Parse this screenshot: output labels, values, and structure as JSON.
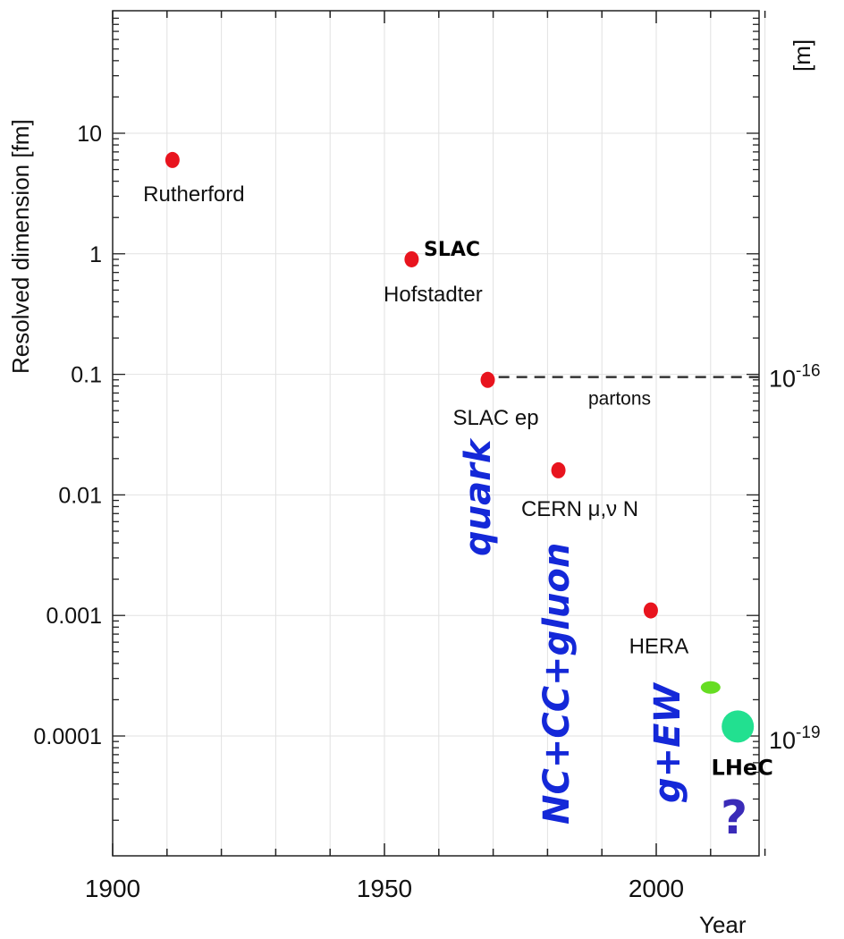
{
  "chart_data": {
    "type": "scatter",
    "xlabel": "Year",
    "ylabel": "Resolved dimension [fm]",
    "y2label": "[m]",
    "xlim": [
      1900,
      2020
    ],
    "ylim_log10": [
      -5.0,
      1.6
    ],
    "y_scale": "log",
    "x_ticks": [
      "1900",
      "1950",
      "2000"
    ],
    "y_ticks": [
      "10",
      "1",
      "0.1",
      "0.01",
      "0.001",
      "0.0001"
    ],
    "y2_ticks": [
      {
        "label": "10",
        "exponent": "-16"
      },
      {
        "label": "10",
        "exponent": "-19"
      }
    ],
    "points": [
      {
        "x": 1911,
        "y": 6,
        "label": "Rutherford",
        "color": "#e8141e"
      },
      {
        "x": 1955,
        "y": 0.9,
        "label": "Hofstadter",
        "color": "#e8141e"
      },
      {
        "x": 1969,
        "y": 0.09,
        "label": "SLAC ep",
        "color": "#e8141e"
      },
      {
        "x": 1982,
        "y": 0.016,
        "label": "CERN μ,ν N",
        "color": "#e8141e"
      },
      {
        "x": 1999,
        "y": 0.0011,
        "label": "HERA",
        "color": "#e8141e"
      },
      {
        "x": 2010,
        "y": 0.00028,
        "label": "",
        "color": "#66dd22"
      },
      {
        "x": 2015,
        "y": 0.00012,
        "label": "LHeC",
        "color": "#22e090"
      }
    ],
    "extra_labels": {
      "slac": "SLAC",
      "partons": "partons"
    },
    "annotations": {
      "quark": "quark",
      "nc_cc_gluon": "NC+CC+gluon",
      "g_ew": "g+EW",
      "question": "?"
    },
    "partons_line": {
      "x_start": 1971,
      "x_end": 2020,
      "y": 0.095
    }
  }
}
